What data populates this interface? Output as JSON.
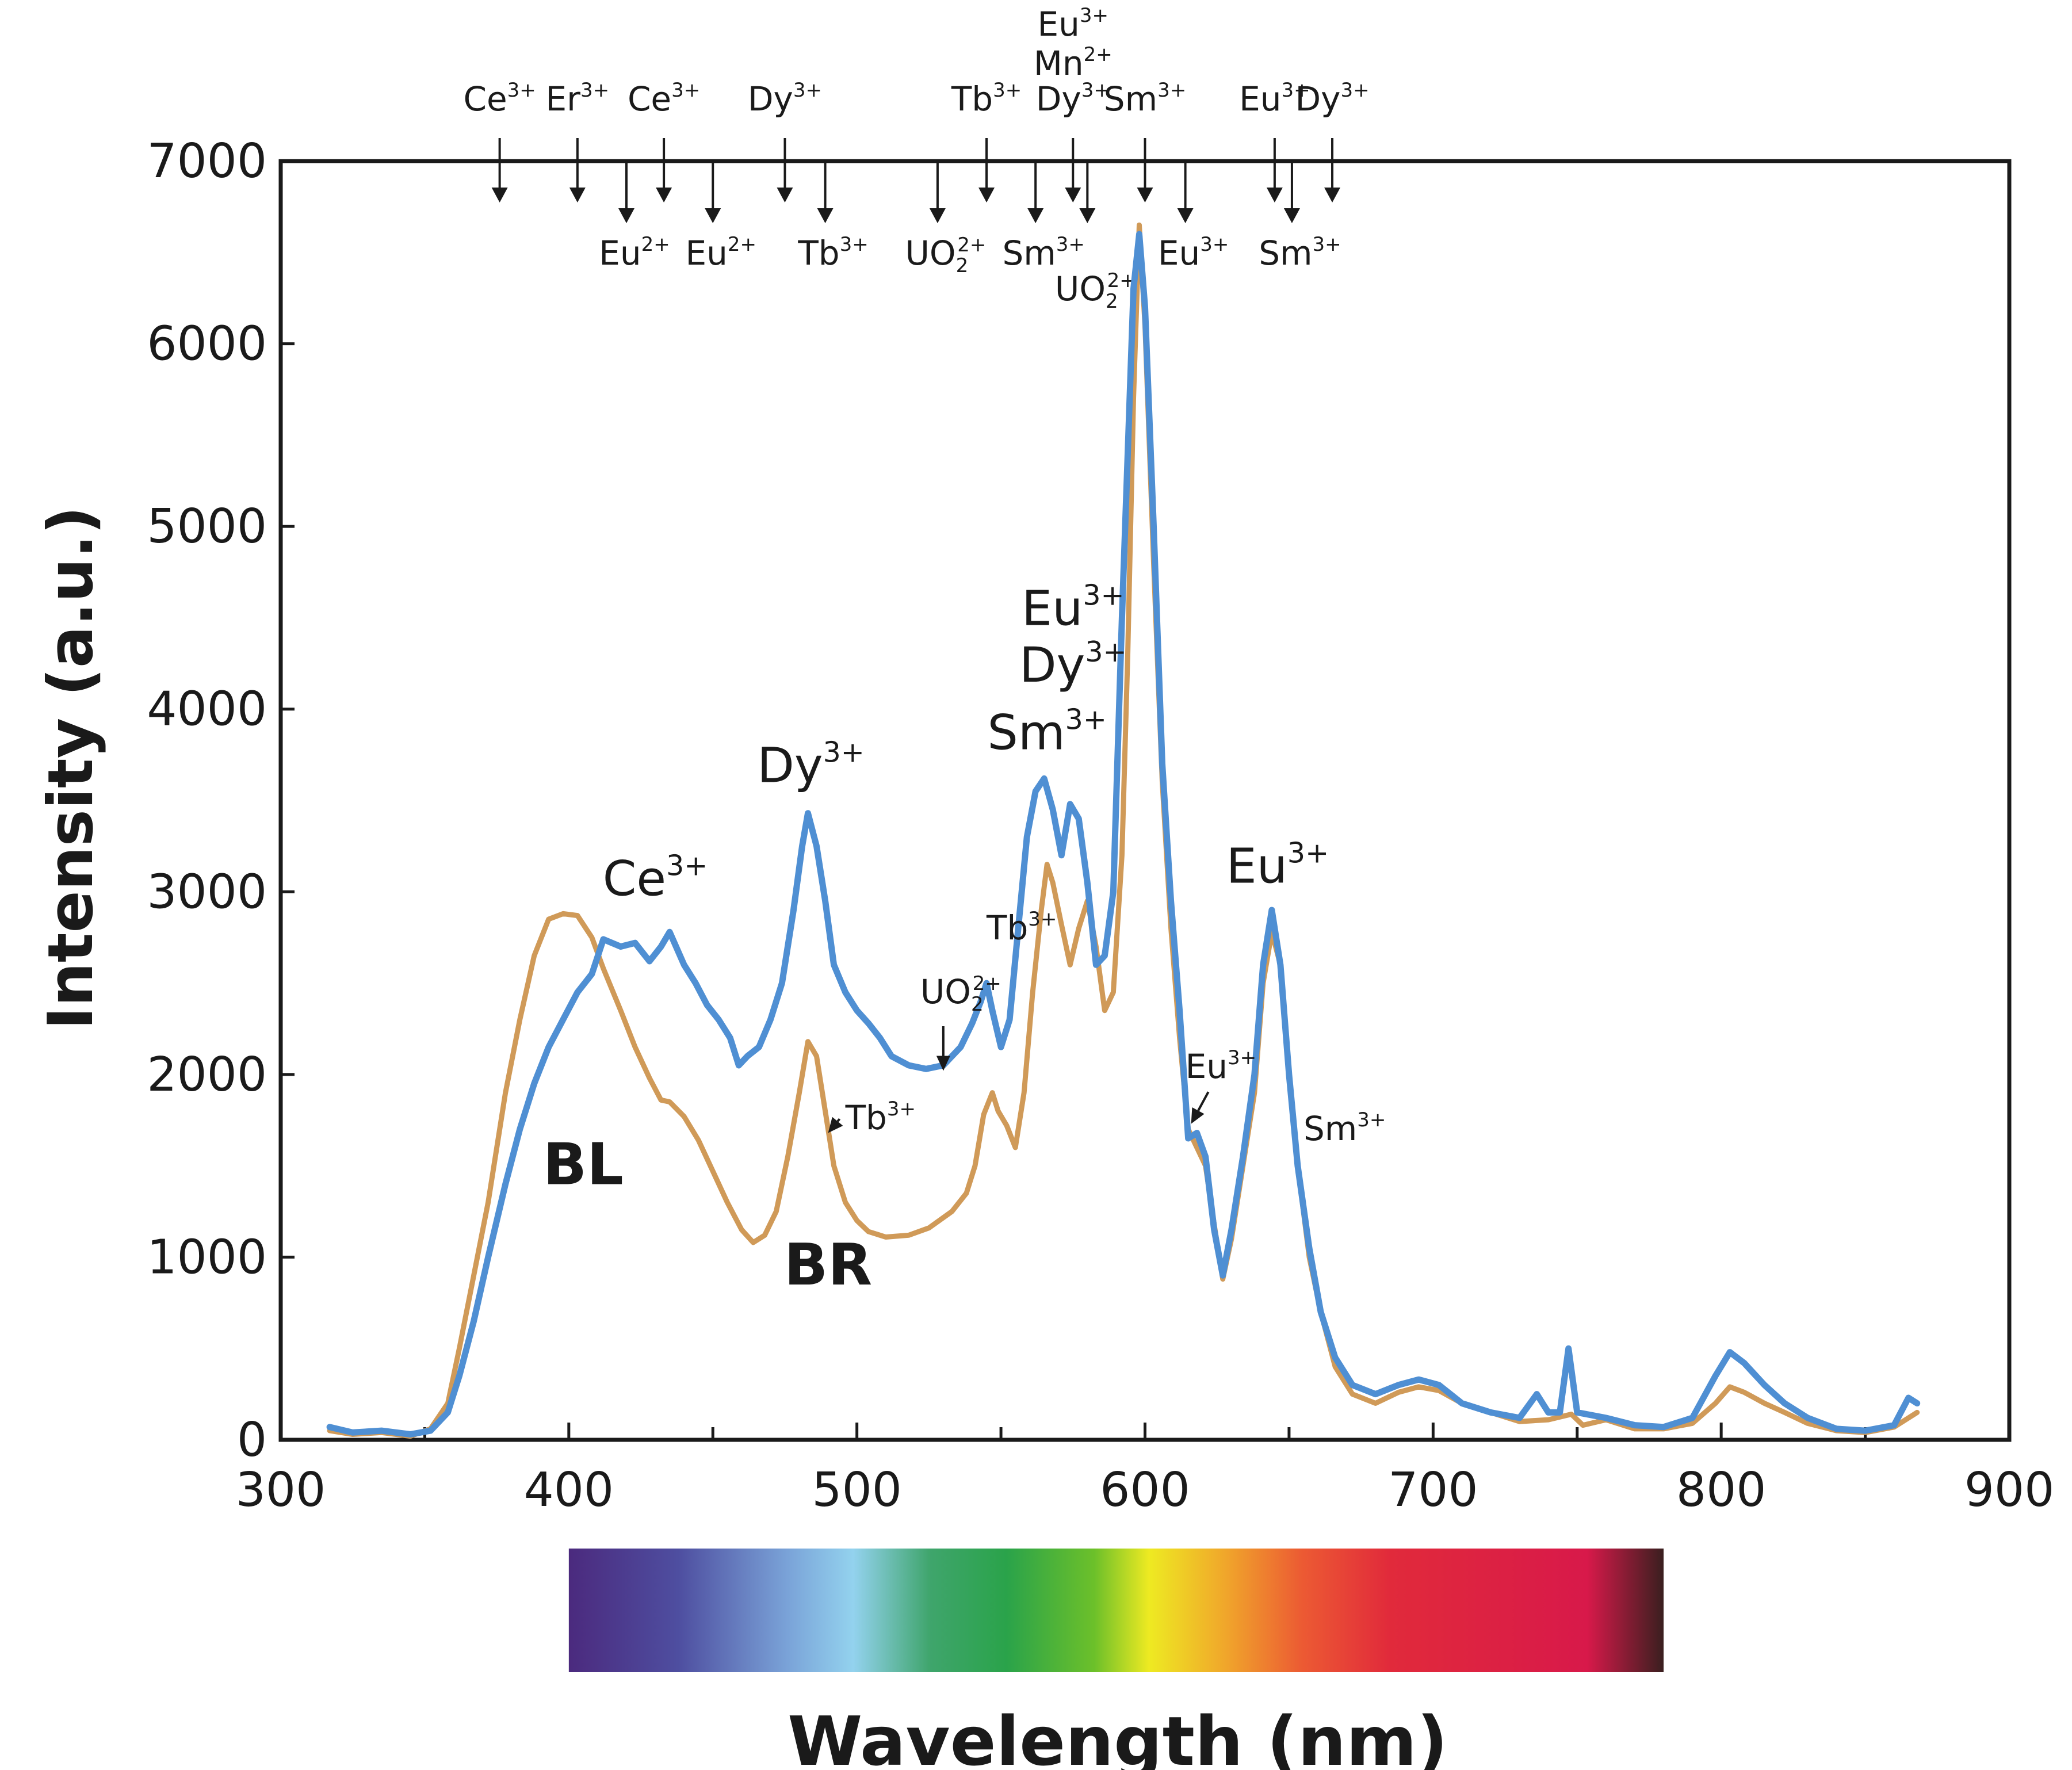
{
  "chart_data": {
    "type": "line",
    "xlabel": "Wavelength (nm)",
    "ylabel": "Intensity (a.u.)",
    "xlim": [
      300,
      900
    ],
    "ylim": [
      0,
      7000
    ],
    "x_ticks": [
      300,
      400,
      500,
      600,
      700,
      800,
      900
    ],
    "x_tick_labels": [
      "300",
      "400",
      "500",
      "600",
      "700",
      "800",
      "900"
    ],
    "y_ticks": [
      0,
      1000,
      2000,
      3000,
      4000,
      5000,
      6000,
      7000
    ],
    "y_tick_labels": [
      "0",
      "1000",
      "2000",
      "3000",
      "4000",
      "5000",
      "6000",
      "7000"
    ],
    "spectrum_bar": {
      "from_nm": 400,
      "to_nm": 780
    },
    "series": [
      {
        "name": "BR",
        "color": "#d09a58",
        "points": [
          [
            317,
            50
          ],
          [
            325,
            30
          ],
          [
            335,
            40
          ],
          [
            345,
            20
          ],
          [
            352,
            60
          ],
          [
            358,
            200
          ],
          [
            362,
            500
          ],
          [
            367,
            900
          ],
          [
            372,
            1300
          ],
          [
            378,
            1900
          ],
          [
            383,
            2300
          ],
          [
            388,
            2650
          ],
          [
            393,
            2850
          ],
          [
            398,
            2880
          ],
          [
            403,
            2870
          ],
          [
            408,
            2750
          ],
          [
            412,
            2580
          ],
          [
            418,
            2350
          ],
          [
            423,
            2150
          ],
          [
            428,
            1980
          ],
          [
            432,
            1860
          ],
          [
            435,
            1850
          ],
          [
            440,
            1770
          ],
          [
            445,
            1640
          ],
          [
            450,
            1470
          ],
          [
            455,
            1300
          ],
          [
            460,
            1150
          ],
          [
            464,
            1080
          ],
          [
            468,
            1120
          ],
          [
            472,
            1250
          ],
          [
            476,
            1550
          ],
          [
            480,
            1900
          ],
          [
            483,
            2180
          ],
          [
            486,
            2100
          ],
          [
            489,
            1800
          ],
          [
            492,
            1500
          ],
          [
            496,
            1300
          ],
          [
            500,
            1200
          ],
          [
            504,
            1140
          ],
          [
            510,
            1110
          ],
          [
            518,
            1120
          ],
          [
            525,
            1160
          ],
          [
            533,
            1250
          ],
          [
            538,
            1350
          ],
          [
            541,
            1500
          ],
          [
            544,
            1780
          ],
          [
            547,
            1900
          ],
          [
            549,
            1800
          ],
          [
            552,
            1720
          ],
          [
            555,
            1600
          ],
          [
            558,
            1900
          ],
          [
            561,
            2450
          ],
          [
            564,
            2900
          ],
          [
            566,
            3150
          ],
          [
            568,
            3050
          ],
          [
            571,
            2820
          ],
          [
            574,
            2600
          ],
          [
            577,
            2800
          ],
          [
            580,
            2950
          ],
          [
            583,
            2700
          ],
          [
            586,
            2350
          ],
          [
            589,
            2450
          ],
          [
            592,
            3200
          ],
          [
            594,
            4300
          ],
          [
            596,
            5700
          ],
          [
            598,
            6650
          ],
          [
            600,
            6100
          ],
          [
            603,
            4800
          ],
          [
            606,
            3600
          ],
          [
            609,
            2800
          ],
          [
            612,
            2200
          ],
          [
            615,
            1700
          ],
          [
            618,
            1600
          ],
          [
            621,
            1500
          ],
          [
            624,
            1180
          ],
          [
            627,
            880
          ],
          [
            630,
            1100
          ],
          [
            634,
            1500
          ],
          [
            638,
            1900
          ],
          [
            641,
            2500
          ],
          [
            644,
            2780
          ],
          [
            647,
            2600
          ],
          [
            650,
            2000
          ],
          [
            653,
            1500
          ],
          [
            657,
            1000
          ],
          [
            661,
            700
          ],
          [
            666,
            400
          ],
          [
            672,
            250
          ],
          [
            680,
            200
          ],
          [
            688,
            260
          ],
          [
            695,
            290
          ],
          [
            702,
            270
          ],
          [
            710,
            200
          ],
          [
            720,
            150
          ],
          [
            730,
            100
          ],
          [
            740,
            110
          ],
          [
            748,
            140
          ],
          [
            752,
            80
          ],
          [
            760,
            110
          ],
          [
            770,
            60
          ],
          [
            780,
            60
          ],
          [
            790,
            90
          ],
          [
            798,
            200
          ],
          [
            803,
            290
          ],
          [
            808,
            260
          ],
          [
            815,
            200
          ],
          [
            822,
            150
          ],
          [
            830,
            90
          ],
          [
            840,
            50
          ],
          [
            850,
            40
          ],
          [
            860,
            70
          ],
          [
            868,
            150
          ]
        ]
      },
      {
        "name": "BL",
        "color": "#4f8fd3",
        "points": [
          [
            317,
            70
          ],
          [
            325,
            40
          ],
          [
            335,
            50
          ],
          [
            345,
            30
          ],
          [
            352,
            50
          ],
          [
            358,
            150
          ],
          [
            362,
            350
          ],
          [
            367,
            650
          ],
          [
            372,
            1000
          ],
          [
            378,
            1400
          ],
          [
            383,
            1700
          ],
          [
            388,
            1950
          ],
          [
            393,
            2150
          ],
          [
            398,
            2300
          ],
          [
            403,
            2450
          ],
          [
            408,
            2550
          ],
          [
            412,
            2740
          ],
          [
            418,
            2700
          ],
          [
            423,
            2720
          ],
          [
            428,
            2620
          ],
          [
            432,
            2700
          ],
          [
            435,
            2780
          ],
          [
            440,
            2600
          ],
          [
            444,
            2500
          ],
          [
            448,
            2380
          ],
          [
            452,
            2300
          ],
          [
            456,
            2200
          ],
          [
            459,
            2050
          ],
          [
            462,
            2100
          ],
          [
            466,
            2150
          ],
          [
            470,
            2300
          ],
          [
            474,
            2500
          ],
          [
            478,
            2900
          ],
          [
            481,
            3250
          ],
          [
            483,
            3430
          ],
          [
            486,
            3250
          ],
          [
            489,
            2950
          ],
          [
            492,
            2600
          ],
          [
            496,
            2450
          ],
          [
            500,
            2350
          ],
          [
            504,
            2280
          ],
          [
            508,
            2200
          ],
          [
            512,
            2100
          ],
          [
            518,
            2050
          ],
          [
            524,
            2030
          ],
          [
            530,
            2050
          ],
          [
            536,
            2150
          ],
          [
            540,
            2280
          ],
          [
            543,
            2400
          ],
          [
            545,
            2500
          ],
          [
            547,
            2350
          ],
          [
            550,
            2150
          ],
          [
            553,
            2300
          ],
          [
            556,
            2800
          ],
          [
            559,
            3300
          ],
          [
            562,
            3550
          ],
          [
            565,
            3620
          ],
          [
            568,
            3450
          ],
          [
            571,
            3200
          ],
          [
            574,
            3480
          ],
          [
            577,
            3400
          ],
          [
            580,
            3050
          ],
          [
            583,
            2600
          ],
          [
            586,
            2650
          ],
          [
            589,
            3000
          ],
          [
            592,
            4500
          ],
          [
            594,
            5400
          ],
          [
            596,
            6300
          ],
          [
            598,
            6600
          ],
          [
            600,
            6200
          ],
          [
            603,
            5000
          ],
          [
            606,
            3700
          ],
          [
            609,
            2950
          ],
          [
            612,
            2350
          ],
          [
            615,
            1650
          ],
          [
            618,
            1680
          ],
          [
            621,
            1550
          ],
          [
            624,
            1150
          ],
          [
            627,
            900
          ],
          [
            630,
            1150
          ],
          [
            634,
            1550
          ],
          [
            638,
            2000
          ],
          [
            641,
            2600
          ],
          [
            644,
            2900
          ],
          [
            647,
            2600
          ],
          [
            650,
            2000
          ],
          [
            653,
            1500
          ],
          [
            657,
            1050
          ],
          [
            661,
            700
          ],
          [
            666,
            450
          ],
          [
            672,
            300
          ],
          [
            680,
            250
          ],
          [
            688,
            300
          ],
          [
            695,
            330
          ],
          [
            702,
            300
          ],
          [
            710,
            200
          ],
          [
            720,
            150
          ],
          [
            730,
            120
          ],
          [
            736,
            250
          ],
          [
            740,
            150
          ],
          [
            744,
            150
          ],
          [
            747,
            500
          ],
          [
            750,
            150
          ],
          [
            760,
            120
          ],
          [
            770,
            80
          ],
          [
            780,
            70
          ],
          [
            790,
            120
          ],
          [
            798,
            350
          ],
          [
            803,
            480
          ],
          [
            808,
            420
          ],
          [
            815,
            300
          ],
          [
            822,
            200
          ],
          [
            830,
            120
          ],
          [
            840,
            60
          ],
          [
            850,
            50
          ],
          [
            860,
            80
          ],
          [
            865,
            230
          ],
          [
            868,
            200
          ]
        ]
      }
    ],
    "series_labels": [
      {
        "text": "BL",
        "x": 405,
        "y": 1400
      },
      {
        "text": "BR",
        "x": 490,
        "y": 850
      }
    ],
    "peak_annotations": [
      {
        "ion": "Ce",
        "charge": "3+",
        "x": 430,
        "y": 2980
      },
      {
        "ion": "Dy",
        "charge": "3+",
        "x": 484,
        "y": 3600
      },
      {
        "ion": "Sm",
        "charge": "3+",
        "x": 566,
        "y": 3780
      },
      {
        "ion": "Dy",
        "charge": "3+",
        "x": 575,
        "y": 4150
      },
      {
        "ion": "Eu",
        "charge": "3+",
        "x": 575,
        "y": 4460
      },
      {
        "ion": "Eu",
        "charge": "3+",
        "x": 646,
        "y": 3050
      }
    ],
    "small_annotations": [
      {
        "ion": "Tb",
        "charge": "3+",
        "x": 545,
        "y": 2740,
        "arrow": false
      },
      {
        "ion": "UO",
        "sub": "2",
        "charge": "2+",
        "x": 522,
        "y": 2390,
        "arrow": true,
        "ax": 530,
        "ay": 2020
      },
      {
        "ion": "Tb",
        "charge": "3+",
        "x": 496,
        "y": 1700,
        "arrow": true,
        "ax": 490,
        "ay": 1680
      },
      {
        "ion": "Eu",
        "charge": "3+",
        "x": 614,
        "y": 1980,
        "arrow": true,
        "ax": 616,
        "ay": 1730
      },
      {
        "ion": "Sm",
        "charge": "3+",
        "x": 655,
        "y": 1640,
        "arrow": false
      }
    ],
    "top_markers_upper": [
      {
        "ion": "Ce",
        "charge": "3+",
        "x": 376
      },
      {
        "ion": "Er",
        "charge": "3+",
        "x": 403
      },
      {
        "ion": "Ce",
        "charge": "3+",
        "x": 433
      },
      {
        "ion": "Dy",
        "charge": "3+",
        "x": 475
      },
      {
        "ion": "Tb",
        "charge": "3+",
        "x": 545
      },
      {
        "ion": "Dy",
        "charge": "3+",
        "x": 575
      },
      {
        "ion": "Sm",
        "charge": "3+",
        "x": 600
      },
      {
        "ion": "Eu",
        "charge": "3+",
        "x": 645
      },
      {
        "ion": "Dy",
        "charge": "3+",
        "x": 665
      }
    ],
    "top_markers_stack": [
      {
        "ion": "Mn",
        "charge": "2+",
        "x": 575
      },
      {
        "ion": "Eu",
        "charge": "3+",
        "x": 575
      }
    ],
    "top_markers_lower": [
      {
        "ion": "Eu",
        "charge": "2+",
        "x": 420
      },
      {
        "ion": "Eu",
        "charge": "2+",
        "x": 450
      },
      {
        "ion": "Tb",
        "charge": "3+",
        "x": 489
      },
      {
        "ion": "UO",
        "sub": "2",
        "charge": "2+",
        "x": 528
      },
      {
        "ion": "Sm",
        "charge": "3+",
        "x": 562
      },
      {
        "ion": "UO",
        "sub": "2",
        "charge": "2+",
        "x": 580
      },
      {
        "ion": "Eu",
        "charge": "3+",
        "x": 614
      },
      {
        "ion": "Sm",
        "charge": "3+",
        "x": 651
      }
    ]
  }
}
